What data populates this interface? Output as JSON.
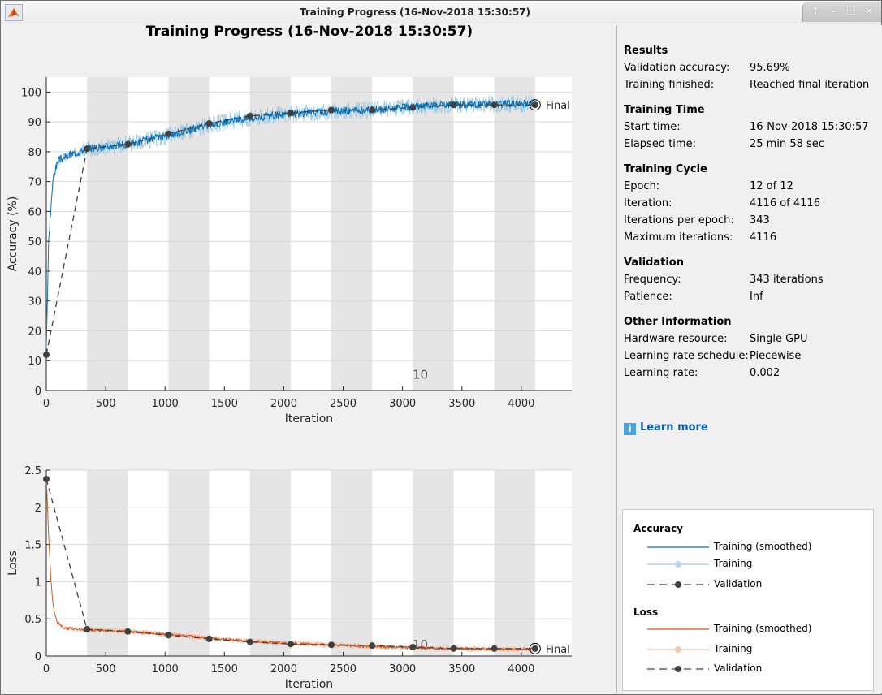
{
  "window": {
    "title": "Training Progress (16-Nov-2018 15:30:57)",
    "buttons": {
      "up": "↑",
      "minimize": "–",
      "maximize": "☐",
      "close": "✕"
    }
  },
  "header": {
    "title": "Training Progress (16-Nov-2018 15:30:57)"
  },
  "colors": {
    "acc_smoothed": "#0072bd",
    "acc_training": "#9ecae1",
    "loss_smoothed": "#d95319",
    "loss_training": "#f4bfa5",
    "validation": "#404040",
    "epoch_shade": "#e5e5e5"
  },
  "sidebar": {
    "sections": [
      {
        "title": "Results",
        "rows": [
          [
            "Validation accuracy:",
            "95.69%"
          ],
          [
            "Training finished:",
            "Reached final iteration"
          ]
        ]
      },
      {
        "title": "Training Time",
        "rows": [
          [
            "Start time:",
            "16-Nov-2018 15:30:57"
          ],
          [
            "Elapsed time:",
            "25 min 58 sec"
          ]
        ]
      },
      {
        "title": "Training Cycle",
        "rows": [
          [
            "Epoch:",
            "12 of 12"
          ],
          [
            "Iteration:",
            "4116 of 4116"
          ],
          [
            "Iterations per epoch:",
            "343"
          ],
          [
            "Maximum iterations:",
            "4116"
          ]
        ]
      },
      {
        "title": "Validation",
        "rows": [
          [
            "Frequency:",
            "343 iterations"
          ],
          [
            "Patience:",
            "Inf"
          ]
        ]
      },
      {
        "title": "Other Information",
        "rows": [
          [
            "Hardware resource:",
            "Single GPU"
          ],
          [
            "Learning rate schedule:",
            "Piecewise"
          ],
          [
            "Learning rate:",
            "0.002"
          ]
        ]
      }
    ],
    "learn_more": "Learn more",
    "legend": {
      "accuracy_title": "Accuracy",
      "loss_title": "Loss",
      "items": [
        "Training (smoothed)",
        "Training",
        "Validation"
      ]
    }
  },
  "chart_data": [
    {
      "type": "line",
      "title": "",
      "xlabel": "Iteration",
      "ylabel": "Accuracy (%)",
      "xlim": [
        0,
        4425
      ],
      "ylim": [
        0,
        105
      ],
      "xticks": [
        0,
        500,
        1000,
        1500,
        2000,
        2500,
        3000,
        3500,
        4000
      ],
      "yticks": [
        0,
        10,
        20,
        30,
        40,
        50,
        60,
        70,
        80,
        90,
        100
      ],
      "grid": "horizontal",
      "epoch_boundaries": [
        0,
        343,
        686,
        1029,
        1372,
        1715,
        2058,
        2401,
        2744,
        3087,
        3430,
        3773,
        4116
      ],
      "annotation": {
        "text": "10",
        "x": 3150,
        "y": 4
      },
      "final_label": "Final",
      "series": [
        {
          "name": "Validation",
          "x": [
            0,
            343,
            686,
            1029,
            1372,
            1715,
            2058,
            2401,
            2744,
            3087,
            3430,
            3773,
            4116
          ],
          "y": [
            12,
            81,
            82.5,
            86,
            89.5,
            92,
            93,
            94,
            94,
            94.8,
            95.7,
            95.7,
            95.69
          ]
        },
        {
          "name": "Training (smoothed)",
          "trend": [
            [
              0,
              15
            ],
            [
              20,
              50
            ],
            [
              40,
              62
            ],
            [
              60,
              72
            ],
            [
              100,
              77
            ],
            [
              200,
              79
            ],
            [
              343,
              81
            ],
            [
              686,
              82.5
            ],
            [
              1029,
              85.5
            ],
            [
              1372,
              89
            ],
            [
              1715,
              91.3
            ],
            [
              2058,
              92.7
            ],
            [
              2401,
              93.5
            ],
            [
              2744,
              94
            ],
            [
              3087,
              95
            ],
            [
              3430,
              95.8
            ],
            [
              3773,
              96
            ],
            [
              4116,
              96
            ]
          ]
        },
        {
          "name": "Training",
          "noise": 3
        }
      ]
    },
    {
      "type": "line",
      "title": "",
      "xlabel": "Iteration",
      "ylabel": "Loss",
      "xlim": [
        0,
        4425
      ],
      "ylim": [
        0,
        2.5
      ],
      "xticks": [
        0,
        500,
        1000,
        1500,
        2000,
        2500,
        3000,
        3500,
        4000
      ],
      "yticks": [
        0,
        0.5,
        1,
        1.5,
        2,
        2.5
      ],
      "ytick_labels": [
        "0",
        "0.5",
        "1",
        "1.5",
        "2",
        "2.5"
      ],
      "grid": "horizontal",
      "epoch_boundaries": [
        0,
        343,
        686,
        1029,
        1372,
        1715,
        2058,
        2401,
        2744,
        3087,
        3430,
        3773,
        4116
      ],
      "annotation": {
        "text": "10",
        "x": 3150,
        "y": 0.1
      },
      "final_label": "Final",
      "series": [
        {
          "name": "Validation",
          "x": [
            0,
            343,
            686,
            1029,
            1372,
            1715,
            2058,
            2401,
            2744,
            3087,
            3430,
            3773,
            4116
          ],
          "y": [
            2.38,
            0.36,
            0.33,
            0.28,
            0.23,
            0.19,
            0.16,
            0.15,
            0.14,
            0.12,
            0.1,
            0.1,
            0.1
          ]
        },
        {
          "name": "Training (smoothed)",
          "trend": [
            [
              0,
              2.4
            ],
            [
              20,
              1.6
            ],
            [
              40,
              1.0
            ],
            [
              60,
              0.65
            ],
            [
              90,
              0.45
            ],
            [
              150,
              0.38
            ],
            [
              343,
              0.35
            ],
            [
              686,
              0.33
            ],
            [
              1029,
              0.29
            ],
            [
              1372,
              0.24
            ],
            [
              1715,
              0.2
            ],
            [
              2058,
              0.17
            ],
            [
              2401,
              0.15
            ],
            [
              2744,
              0.13
            ],
            [
              3087,
              0.11
            ],
            [
              3430,
              0.1
            ],
            [
              3773,
              0.09
            ],
            [
              4116,
              0.09
            ]
          ]
        },
        {
          "name": "Training",
          "noise": 0.04
        }
      ]
    }
  ]
}
